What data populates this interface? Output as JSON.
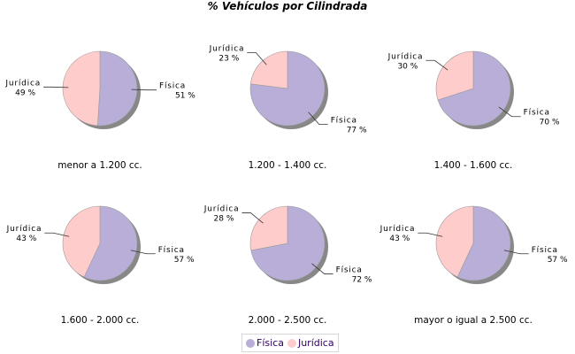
{
  "chart_data": {
    "type": "pie",
    "title": "% Vehículos por Cilindrada",
    "series_names": [
      "Física",
      "Jurídica"
    ],
    "colors": [
      "#b8aed8",
      "#ffcccc"
    ],
    "legend": {
      "position": "bottom",
      "items": [
        "Física",
        "Jurídica"
      ]
    },
    "pies": [
      {
        "category": "menor a 1.200 cc.",
        "values": [
          51,
          49
        ],
        "labels": [
          "51 %",
          "49 %"
        ]
      },
      {
        "category": "1.200 - 1.400 cc.",
        "values": [
          77,
          23
        ],
        "labels": [
          "77 %",
          "23 %"
        ]
      },
      {
        "category": "1.400 - 1.600 cc.",
        "values": [
          70,
          30
        ],
        "labels": [
          "70 %",
          "30 %"
        ]
      },
      {
        "category": "1.600 - 2.000 cc.",
        "values": [
          57,
          43
        ],
        "labels": [
          "57 %",
          "43 %"
        ]
      },
      {
        "category": "2.000 - 2.500 cc.",
        "values": [
          72,
          28
        ],
        "labels": [
          "72 %",
          "28 %"
        ]
      },
      {
        "category": "mayor o igual a 2.500 cc.",
        "values": [
          57,
          43
        ],
        "labels": [
          "57 %",
          "43 %"
        ]
      }
    ]
  }
}
